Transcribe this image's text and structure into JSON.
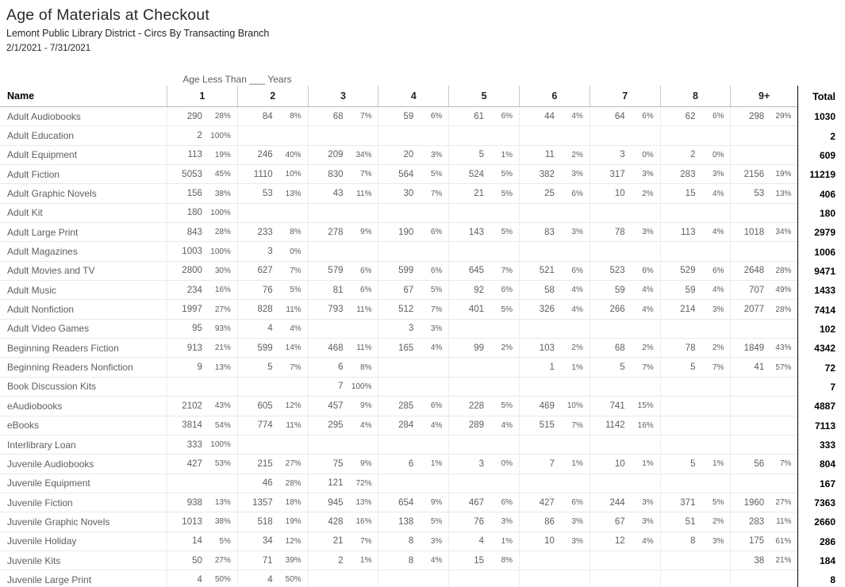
{
  "header": {
    "title": "Age of Materials at Checkout",
    "subtitle": "Lemont Public Library District - Circs By Transacting Branch",
    "date_range": "2/1/2021 - 7/31/2021"
  },
  "table": {
    "group_header": "Age Less Than ___ Years",
    "name_header": "Name",
    "total_header": "Total",
    "age_columns": [
      "1",
      "2",
      "3",
      "4",
      "5",
      "6",
      "7",
      "8",
      "9+"
    ],
    "rows": [
      {
        "name": "Adult Audiobooks",
        "cells": [
          [
            "290",
            "28%"
          ],
          [
            "84",
            "8%"
          ],
          [
            "68",
            "7%"
          ],
          [
            "59",
            "6%"
          ],
          [
            "61",
            "6%"
          ],
          [
            "44",
            "4%"
          ],
          [
            "64",
            "6%"
          ],
          [
            "62",
            "6%"
          ],
          [
            "298",
            "29%"
          ]
        ],
        "total": "1030"
      },
      {
        "name": "Adult Education",
        "cells": [
          [
            "2",
            "100%"
          ],
          null,
          null,
          null,
          null,
          null,
          null,
          null,
          null
        ],
        "total": "2"
      },
      {
        "name": "Adult Equipment",
        "cells": [
          [
            "113",
            "19%"
          ],
          [
            "246",
            "40%"
          ],
          [
            "209",
            "34%"
          ],
          [
            "20",
            "3%"
          ],
          [
            "5",
            "1%"
          ],
          [
            "11",
            "2%"
          ],
          [
            "3",
            "0%"
          ],
          [
            "2",
            "0%"
          ],
          null
        ],
        "total": "609"
      },
      {
        "name": "Adult Fiction",
        "cells": [
          [
            "5053",
            "45%"
          ],
          [
            "1110",
            "10%"
          ],
          [
            "830",
            "7%"
          ],
          [
            "564",
            "5%"
          ],
          [
            "524",
            "5%"
          ],
          [
            "382",
            "3%"
          ],
          [
            "317",
            "3%"
          ],
          [
            "283",
            "3%"
          ],
          [
            "2156",
            "19%"
          ]
        ],
        "total": "11219"
      },
      {
        "name": "Adult Graphic Novels",
        "cells": [
          [
            "156",
            "38%"
          ],
          [
            "53",
            "13%"
          ],
          [
            "43",
            "11%"
          ],
          [
            "30",
            "7%"
          ],
          [
            "21",
            "5%"
          ],
          [
            "25",
            "6%"
          ],
          [
            "10",
            "2%"
          ],
          [
            "15",
            "4%"
          ],
          [
            "53",
            "13%"
          ]
        ],
        "total": "406"
      },
      {
        "name": "Adult Kit",
        "cells": [
          [
            "180",
            "100%"
          ],
          null,
          null,
          null,
          null,
          null,
          null,
          null,
          null
        ],
        "total": "180"
      },
      {
        "name": "Adult Large Print",
        "cells": [
          [
            "843",
            "28%"
          ],
          [
            "233",
            "8%"
          ],
          [
            "278",
            "9%"
          ],
          [
            "190",
            "6%"
          ],
          [
            "143",
            "5%"
          ],
          [
            "83",
            "3%"
          ],
          [
            "78",
            "3%"
          ],
          [
            "113",
            "4%"
          ],
          [
            "1018",
            "34%"
          ]
        ],
        "total": "2979"
      },
      {
        "name": "Adult Magazines",
        "cells": [
          [
            "1003",
            "100%"
          ],
          [
            "3",
            "0%"
          ],
          null,
          null,
          null,
          null,
          null,
          null,
          null
        ],
        "total": "1006"
      },
      {
        "name": "Adult Movies and TV",
        "cells": [
          [
            "2800",
            "30%"
          ],
          [
            "627",
            "7%"
          ],
          [
            "579",
            "6%"
          ],
          [
            "599",
            "6%"
          ],
          [
            "645",
            "7%"
          ],
          [
            "521",
            "6%"
          ],
          [
            "523",
            "6%"
          ],
          [
            "529",
            "6%"
          ],
          [
            "2648",
            "28%"
          ]
        ],
        "total": "9471"
      },
      {
        "name": "Adult Music",
        "cells": [
          [
            "234",
            "16%"
          ],
          [
            "76",
            "5%"
          ],
          [
            "81",
            "6%"
          ],
          [
            "67",
            "5%"
          ],
          [
            "92",
            "6%"
          ],
          [
            "58",
            "4%"
          ],
          [
            "59",
            "4%"
          ],
          [
            "59",
            "4%"
          ],
          [
            "707",
            "49%"
          ]
        ],
        "total": "1433"
      },
      {
        "name": "Adult Nonfiction",
        "cells": [
          [
            "1997",
            "27%"
          ],
          [
            "828",
            "11%"
          ],
          [
            "793",
            "11%"
          ],
          [
            "512",
            "7%"
          ],
          [
            "401",
            "5%"
          ],
          [
            "326",
            "4%"
          ],
          [
            "266",
            "4%"
          ],
          [
            "214",
            "3%"
          ],
          [
            "2077",
            "28%"
          ]
        ],
        "total": "7414"
      },
      {
        "name": "Adult Video Games",
        "cells": [
          [
            "95",
            "93%"
          ],
          [
            "4",
            "4%"
          ],
          null,
          [
            "3",
            "3%"
          ],
          null,
          null,
          null,
          null,
          null
        ],
        "total": "102"
      },
      {
        "name": "Beginning Readers Fiction",
        "cells": [
          [
            "913",
            "21%"
          ],
          [
            "599",
            "14%"
          ],
          [
            "468",
            "11%"
          ],
          [
            "165",
            "4%"
          ],
          [
            "99",
            "2%"
          ],
          [
            "103",
            "2%"
          ],
          [
            "68",
            "2%"
          ],
          [
            "78",
            "2%"
          ],
          [
            "1849",
            "43%"
          ]
        ],
        "total": "4342"
      },
      {
        "name": "Beginning Readers Nonfiction",
        "cells": [
          [
            "9",
            "13%"
          ],
          [
            "5",
            "7%"
          ],
          [
            "6",
            "8%"
          ],
          null,
          null,
          [
            "1",
            "1%"
          ],
          [
            "5",
            "7%"
          ],
          [
            "5",
            "7%"
          ],
          [
            "41",
            "57%"
          ]
        ],
        "total": "72"
      },
      {
        "name": "Book Discussion Kits",
        "cells": [
          null,
          null,
          [
            "7",
            "100%"
          ],
          null,
          null,
          null,
          null,
          null,
          null
        ],
        "total": "7"
      },
      {
        "name": "eAudiobooks",
        "cells": [
          [
            "2102",
            "43%"
          ],
          [
            "605",
            "12%"
          ],
          [
            "457",
            "9%"
          ],
          [
            "285",
            "6%"
          ],
          [
            "228",
            "5%"
          ],
          [
            "469",
            "10%"
          ],
          [
            "741",
            "15%"
          ],
          null,
          null
        ],
        "total": "4887"
      },
      {
        "name": "eBooks",
        "cells": [
          [
            "3814",
            "54%"
          ],
          [
            "774",
            "11%"
          ],
          [
            "295",
            "4%"
          ],
          [
            "284",
            "4%"
          ],
          [
            "289",
            "4%"
          ],
          [
            "515",
            "7%"
          ],
          [
            "1142",
            "16%"
          ],
          null,
          null
        ],
        "total": "7113"
      },
      {
        "name": "Interlibrary Loan",
        "cells": [
          [
            "333",
            "100%"
          ],
          null,
          null,
          null,
          null,
          null,
          null,
          null,
          null
        ],
        "total": "333"
      },
      {
        "name": "Juvenile Audiobooks",
        "cells": [
          [
            "427",
            "53%"
          ],
          [
            "215",
            "27%"
          ],
          [
            "75",
            "9%"
          ],
          [
            "6",
            "1%"
          ],
          [
            "3",
            "0%"
          ],
          [
            "7",
            "1%"
          ],
          [
            "10",
            "1%"
          ],
          [
            "5",
            "1%"
          ],
          [
            "56",
            "7%"
          ]
        ],
        "total": "804"
      },
      {
        "name": "Juvenile Equipment",
        "cells": [
          null,
          [
            "46",
            "28%"
          ],
          [
            "121",
            "72%"
          ],
          null,
          null,
          null,
          null,
          null,
          null
        ],
        "total": "167"
      },
      {
        "name": "Juvenile Fiction",
        "cells": [
          [
            "938",
            "13%"
          ],
          [
            "1357",
            "18%"
          ],
          [
            "945",
            "13%"
          ],
          [
            "654",
            "9%"
          ],
          [
            "467",
            "6%"
          ],
          [
            "427",
            "6%"
          ],
          [
            "244",
            "3%"
          ],
          [
            "371",
            "5%"
          ],
          [
            "1960",
            "27%"
          ]
        ],
        "total": "7363"
      },
      {
        "name": "Juvenile Graphic Novels",
        "cells": [
          [
            "1013",
            "38%"
          ],
          [
            "518",
            "19%"
          ],
          [
            "428",
            "16%"
          ],
          [
            "138",
            "5%"
          ],
          [
            "76",
            "3%"
          ],
          [
            "86",
            "3%"
          ],
          [
            "67",
            "3%"
          ],
          [
            "51",
            "2%"
          ],
          [
            "283",
            "11%"
          ]
        ],
        "total": "2660"
      },
      {
        "name": "Juvenile Holiday",
        "cells": [
          [
            "14",
            "5%"
          ],
          [
            "34",
            "12%"
          ],
          [
            "21",
            "7%"
          ],
          [
            "8",
            "3%"
          ],
          [
            "4",
            "1%"
          ],
          [
            "10",
            "3%"
          ],
          [
            "12",
            "4%"
          ],
          [
            "8",
            "3%"
          ],
          [
            "175",
            "61%"
          ]
        ],
        "total": "286"
      },
      {
        "name": "Juvenile Kits",
        "cells": [
          [
            "50",
            "27%"
          ],
          [
            "71",
            "39%"
          ],
          [
            "2",
            "1%"
          ],
          [
            "8",
            "4%"
          ],
          [
            "15",
            "8%"
          ],
          null,
          null,
          null,
          [
            "38",
            "21%"
          ]
        ],
        "total": "184"
      },
      {
        "name": "Juvenile Large Print",
        "cells": [
          [
            "4",
            "50%"
          ],
          [
            "4",
            "50%"
          ],
          null,
          null,
          null,
          null,
          null,
          null,
          null
        ],
        "total": "8"
      }
    ]
  }
}
